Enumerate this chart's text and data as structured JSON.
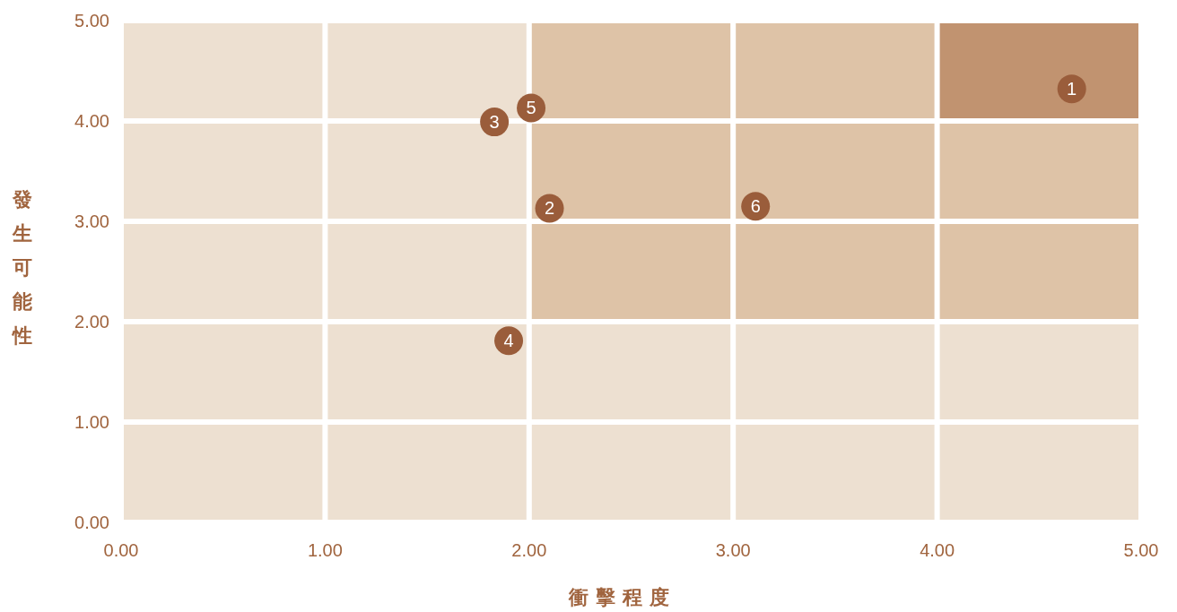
{
  "chart_data": {
    "type": "scatter",
    "xlabel": "衝擊程度",
    "ylabel": "發生可能性",
    "x": [
      4.66,
      2.1,
      1.83,
      1.9,
      2.01,
      3.11
    ],
    "values": [
      4.32,
      3.13,
      3.99,
      1.81,
      4.13,
      3.15
    ],
    "annotations": [
      {
        "text": "1",
        "x": 4.66,
        "y": 4.32
      },
      {
        "text": "2",
        "x": 2.1,
        "y": 3.13
      },
      {
        "text": "3",
        "x": 1.83,
        "y": 3.99
      },
      {
        "text": "4",
        "x": 1.9,
        "y": 1.81
      },
      {
        "text": "5",
        "x": 2.01,
        "y": 4.13
      },
      {
        "text": "6",
        "x": 3.11,
        "y": 3.15
      }
    ],
    "color": "#9a5d3b",
    "marker": "circle",
    "grid": true,
    "xlim": [
      0,
      5
    ],
    "ylim": [
      0,
      5
    ],
    "xticks": [
      {
        "value": 0,
        "label": "0.00"
      },
      {
        "value": 1,
        "label": "1.00"
      },
      {
        "value": 2,
        "label": "2.00"
      },
      {
        "value": 3,
        "label": "3.00"
      },
      {
        "value": 4,
        "label": "4.00"
      },
      {
        "value": 5,
        "label": "5.00"
      }
    ],
    "yticks": [
      {
        "value": 0,
        "label": "0.00"
      },
      {
        "value": 1,
        "label": "1.00"
      },
      {
        "value": 2,
        "label": "2.00"
      },
      {
        "value": 3,
        "label": "3.00"
      },
      {
        "value": 4,
        "label": "4.00"
      },
      {
        "value": 5,
        "label": "5.00"
      }
    ]
  }
}
